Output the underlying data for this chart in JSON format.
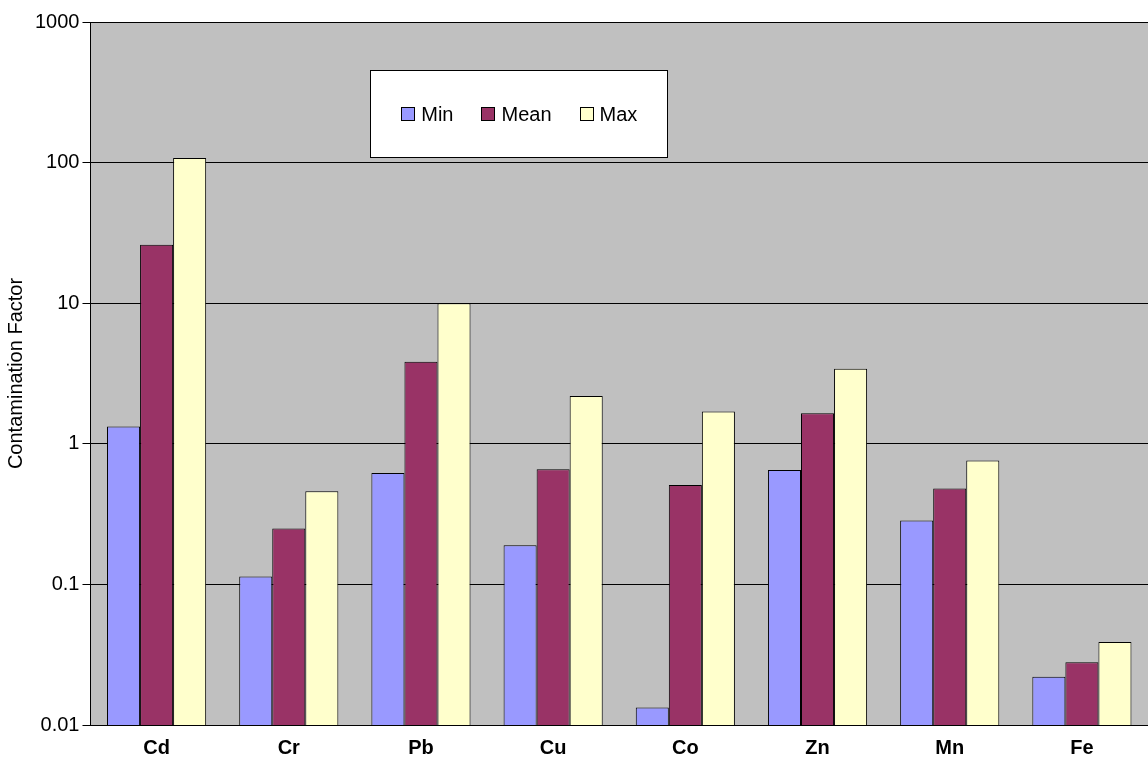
{
  "chart_data": {
    "type": "bar",
    "ylabel": "Contamination Factor",
    "categories": [
      "Cd",
      "Cr",
      "Pb",
      "Cu",
      "Co",
      "Zn",
      "Mn",
      "Fe"
    ],
    "series": [
      {
        "name": "Min",
        "color": "#9999ff",
        "values": [
          1.33,
          0.114,
          0.62,
          0.19,
          0.0133,
          0.65,
          0.285,
          0.022
        ]
      },
      {
        "name": "Mean",
        "color": "#993366",
        "values": [
          26,
          0.25,
          3.84,
          0.66,
          0.51,
          1.65,
          0.48,
          0.028
        ]
      },
      {
        "name": "Max",
        "color": "#ffffcc",
        "values": [
          108,
          0.46,
          10,
          2.19,
          1.7,
          3.42,
          0.76,
          0.039
        ]
      }
    ],
    "log": true,
    "ylim": [
      0.01,
      1000
    ],
    "yticks": [
      0.01,
      0.1,
      1,
      10,
      100,
      1000
    ],
    "grid": "y",
    "legend": "top"
  }
}
